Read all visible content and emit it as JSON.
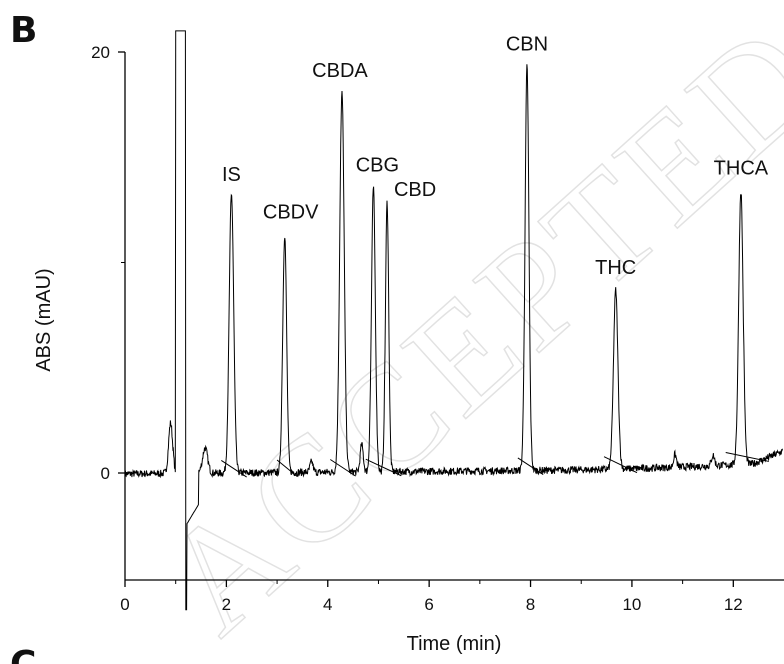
{
  "panel_labels": {
    "current": "B",
    "next": "C"
  },
  "watermark_text": "ACCEPTED MANUSCRIPT",
  "chart_data": {
    "type": "line",
    "title": "",
    "xlabel": "Time (min)",
    "ylabel": "ABS (mAU)",
    "xlim": [
      0,
      13
    ],
    "ylim": [
      -5,
      20
    ],
    "x_ticks": [
      0,
      2,
      4,
      6,
      8,
      10,
      12
    ],
    "y_ticks": [
      0,
      20
    ],
    "y_tick_labels": [
      "0",
      "20"
    ],
    "grid": false,
    "line_color": "#000000",
    "peaks": [
      {
        "label": "IS",
        "time": 2.1,
        "height": 13.2,
        "width": 0.08
      },
      {
        "label": "CBDV",
        "time": 3.15,
        "height": 11.3,
        "width": 0.07
      },
      {
        "label": "CBDA",
        "time": 4.28,
        "height": 18.0,
        "width": 0.08
      },
      {
        "label": "CBG",
        "time": 4.9,
        "height": 13.5,
        "width": 0.07
      },
      {
        "label": "CBD",
        "time": 5.17,
        "height": 12.8,
        "width": 0.06
      },
      {
        "label": "CBN",
        "time": 7.93,
        "height": 19.2,
        "width": 0.07
      },
      {
        "label": "THC",
        "time": 9.68,
        "height": 8.5,
        "width": 0.08
      },
      {
        "label": "THCA",
        "time": 12.15,
        "height": 13.0,
        "width": 0.08
      }
    ],
    "solvent_front": {
      "time_start": 1.0,
      "time_end": 1.15,
      "min": -6.0,
      "max": 20.0
    }
  }
}
